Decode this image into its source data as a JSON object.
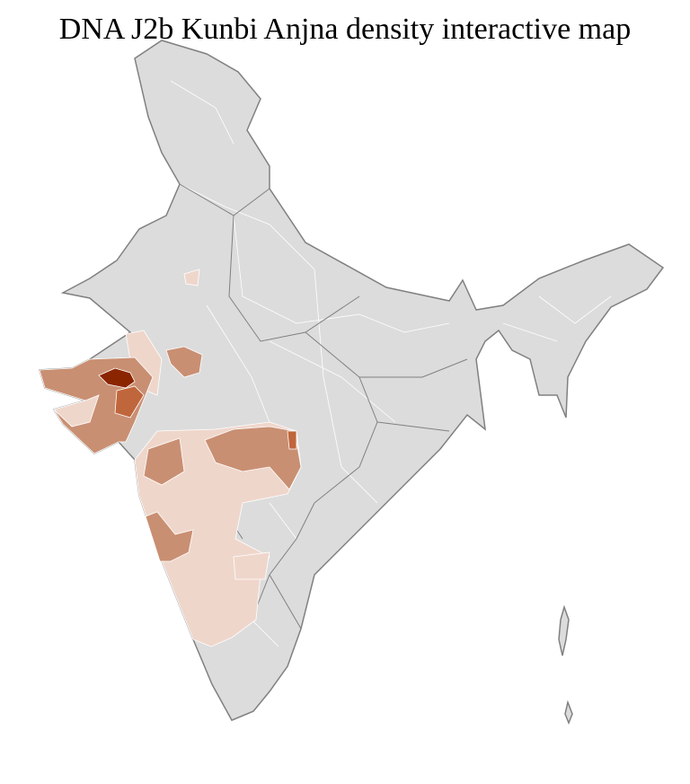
{
  "title": "DNA J2b Kunbi Anjna density interactive map",
  "colors": {
    "background_region": "#dcdcdc",
    "border": "#808080",
    "district_line": "#ffffff",
    "density_low": "#efd6cb",
    "density_medium": "#c98f72",
    "density_high": "#c0663c",
    "density_highest": "#8b2500"
  }
}
